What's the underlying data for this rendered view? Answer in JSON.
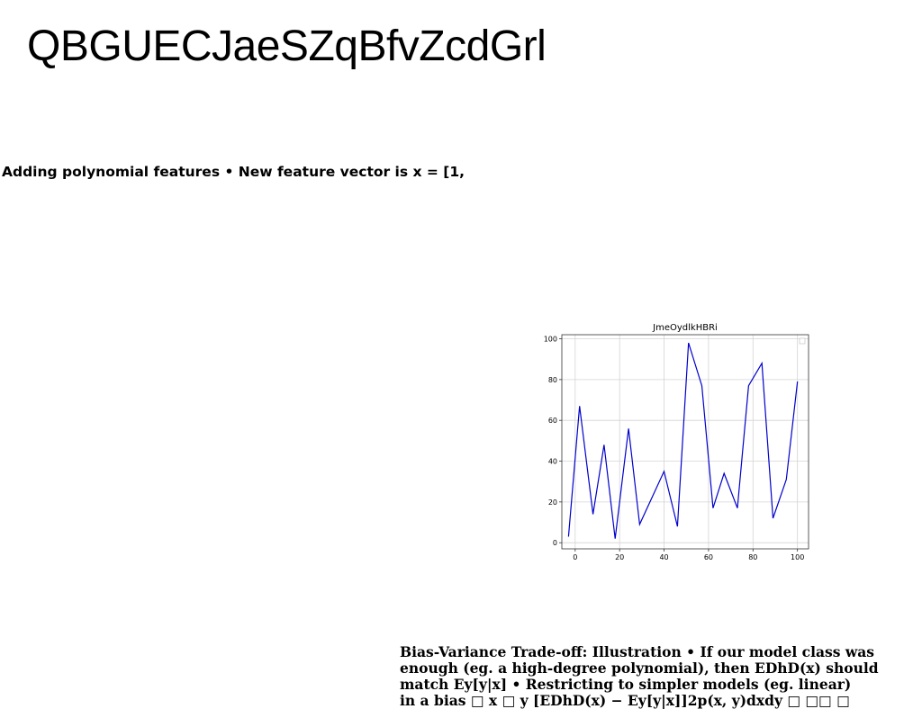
{
  "heading": "QBGUECJaeSZqBfvZcdGrl",
  "subheading": "Adding polynomial features • New feature vector is x = [1,",
  "chart_data": {
    "type": "line",
    "title": "JmeOydlkHBRi",
    "xlabel": "",
    "ylabel": "",
    "x": [
      -3,
      2,
      8,
      13,
      18,
      24,
      29,
      40,
      46,
      51,
      57,
      62,
      67,
      73,
      78,
      84,
      89,
      95,
      100
    ],
    "series": [
      {
        "color": "#0000cc",
        "values": [
          3,
          67,
          14,
          48,
          2,
          56,
          9,
          35,
          8,
          98,
          77,
          17,
          34,
          17,
          77,
          88,
          12,
          31,
          79
        ]
      }
    ],
    "xlim": [
      -6,
      105
    ],
    "ylim": [
      -3,
      102
    ],
    "xticks": [
      "0",
      "20",
      "40",
      "60",
      "80",
      "100"
    ],
    "yticks": [
      "0",
      "20",
      "40",
      "60",
      "80",
      "100"
    ],
    "grid": true,
    "legend": "top-right"
  },
  "body": {
    "lines": [
      "Bias-Variance Trade-off: Illustration • If our model class was",
      "enough (eg. a high-degree polynomial), then EDhD(x) should",
      "match Ey[y|x] • Restricting to simpler models (eg. linear)",
      "in a bias □ x □ y [EDhD(x) − Ey[y|x]]2p(x, y)dxdy □ □□ □"
    ]
  }
}
